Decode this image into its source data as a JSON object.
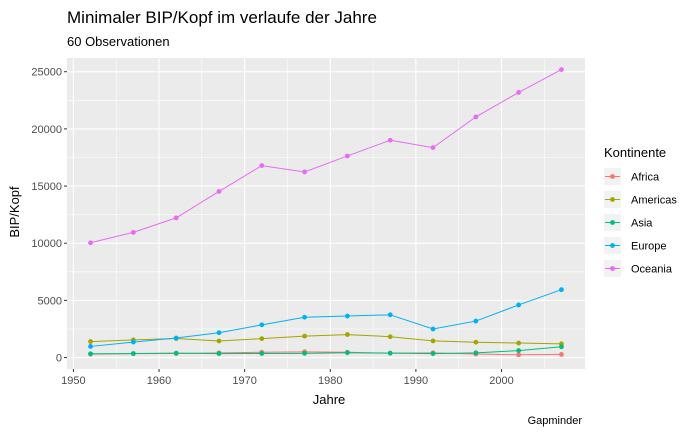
{
  "chart_data": {
    "type": "line",
    "title": "Minimaler BIP/Kopf im verlaufe der Jahre",
    "subtitle": "60 Observationen",
    "xlabel": "Jahre",
    "ylabel": "BIP/Kopf",
    "caption": "Gapminder",
    "legend_title": "Kontinente",
    "legend_position": "right",
    "grid": true,
    "background": "#ebebeb",
    "xlim": [
      1949.25,
      2009.75
    ],
    "ylim": [
      -1000,
      26200
    ],
    "x_ticks": [
      1950,
      1960,
      1970,
      1980,
      1990,
      2000
    ],
    "y_ticks": [
      0,
      5000,
      10000,
      15000,
      20000,
      25000
    ],
    "x": [
      1952,
      1957,
      1962,
      1967,
      1972,
      1977,
      1982,
      1987,
      1992,
      1997,
      2002,
      2007
    ],
    "series": [
      {
        "name": "Africa",
        "color": "#F8766D",
        "values": [
          300,
          340,
          355,
          412,
          464,
          502,
          462,
          390,
          410,
          312,
          241,
          277
        ]
      },
      {
        "name": "Americas",
        "color": "#A3A500",
        "values": [
          1398,
          1544,
          1662,
          1452,
          1654,
          1874,
          2011,
          1823,
          1456,
          1342,
          1270,
          1202
        ]
      },
      {
        "name": "Asia",
        "color": "#00BF7D",
        "values": [
          331,
          350,
          388,
          349,
          357,
          371,
          424,
          385,
          347,
          415,
          611,
          944
        ]
      },
      {
        "name": "Europe",
        "color": "#00B0F6",
        "values": [
          973,
          1354,
          1710,
          2172,
          2860,
          3528,
          3631,
          3739,
          2497,
          3193,
          4604,
          5937
        ]
      },
      {
        "name": "Oceania",
        "color": "#E76BF3",
        "values": [
          10040,
          10950,
          12218,
          14526,
          16789,
          16233,
          17632,
          19008,
          18363,
          21050,
          23189,
          25185
        ]
      }
    ]
  }
}
